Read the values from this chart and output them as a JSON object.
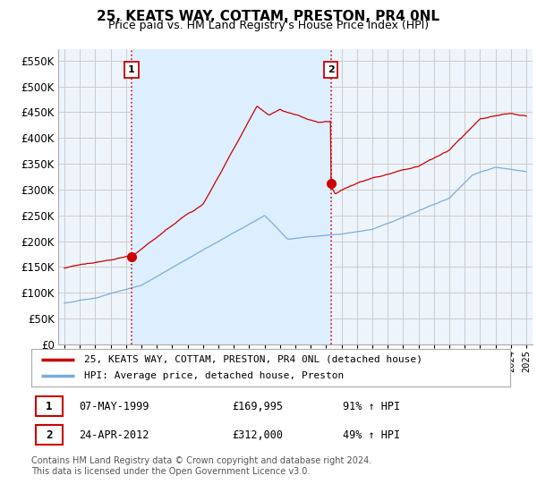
{
  "title": "25, KEATS WAY, COTTAM, PRESTON, PR4 0NL",
  "subtitle": "Price paid vs. HM Land Registry's House Price Index (HPI)",
  "ytick_values": [
    0,
    50000,
    100000,
    150000,
    200000,
    250000,
    300000,
    350000,
    400000,
    450000,
    500000,
    550000
  ],
  "ylim": [
    0,
    572000
  ],
  "sale1_x": 1999.36,
  "sale1_price": 169995,
  "sale2_x": 2012.3,
  "sale2_price": 312000,
  "legend_line1": "25, KEATS WAY, COTTAM, PRESTON, PR4 0NL (detached house)",
  "legend_line2": "HPI: Average price, detached house, Preston",
  "footer": "Contains HM Land Registry data © Crown copyright and database right 2024.\nThis data is licensed under the Open Government Licence v3.0.",
  "line_color_red": "#cc0000",
  "line_color_blue": "#7aaddc",
  "shade_color": "#ddeeff",
  "background_color": "#ffffff",
  "grid_color": "#cccccc",
  "xmin": 1994.6,
  "xmax": 2025.4
}
